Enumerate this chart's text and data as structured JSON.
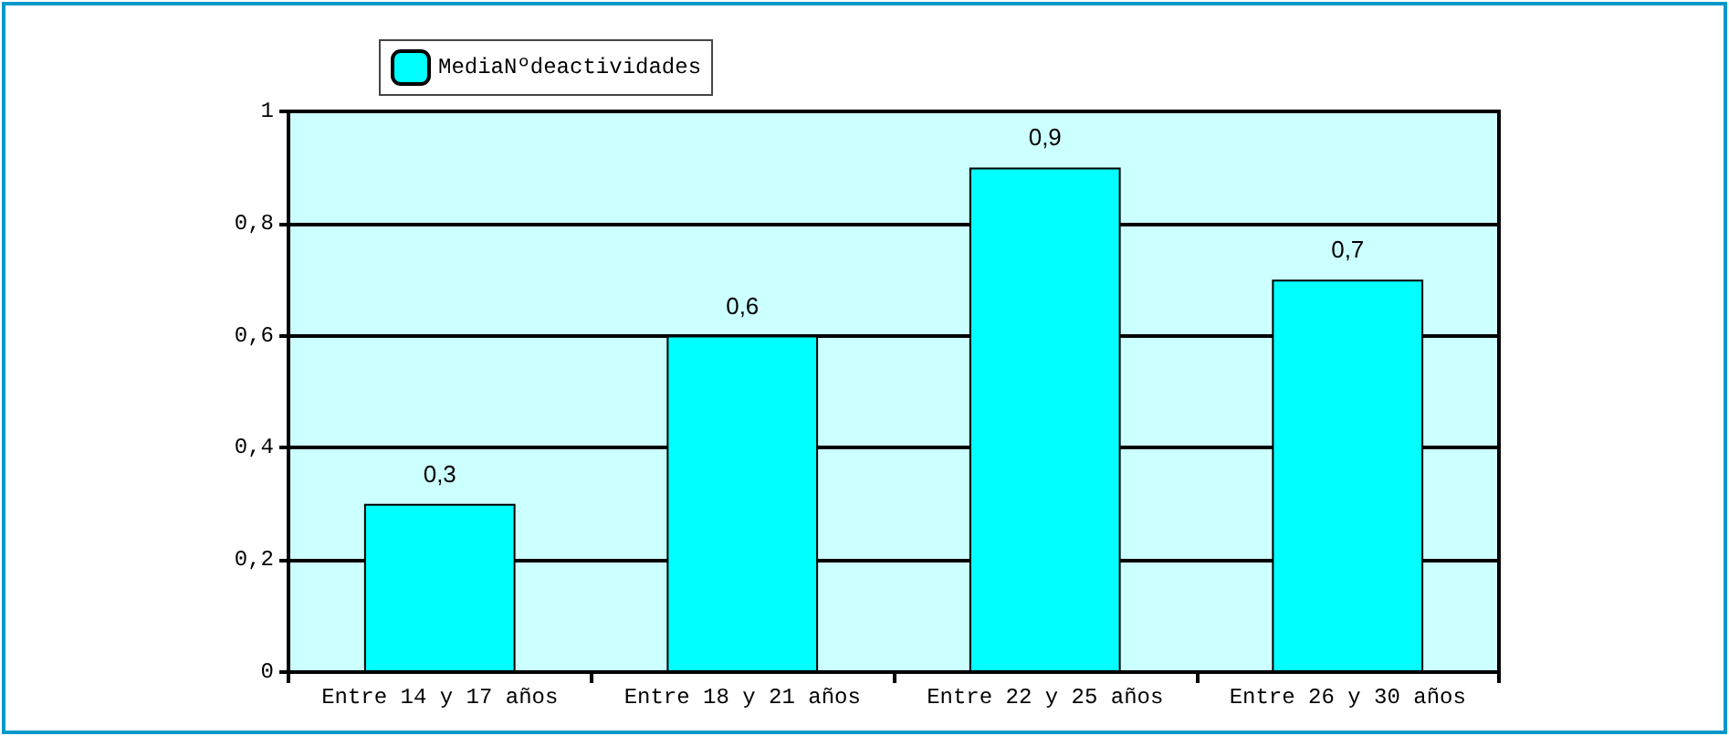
{
  "chart_data": {
    "type": "bar",
    "categories": [
      "Entre 14 y 17 años",
      "Entre 18 y 21 años",
      "Entre 22 y 25 años",
      "Entre 26 y 30 años"
    ],
    "series": [
      {
        "name": "MediaNºdeactividades",
        "color": "#00ffff",
        "values": [
          0.3,
          0.6,
          0.9,
          0.7
        ],
        "value_labels": [
          "0,3",
          "0,6",
          "0,9",
          "0,7"
        ]
      }
    ],
    "ylim": [
      0,
      1
    ],
    "yticks": [
      0,
      {
        "value": 0.2,
        "label": "0,2"
      },
      {
        "value": 0.4,
        "label": "0,4"
      },
      {
        "value": 0.6,
        "label": "0,6"
      },
      {
        "value": 0.8,
        "label": "0,8"
      },
      1
    ],
    "grid": "y",
    "legend": "top left"
  }
}
